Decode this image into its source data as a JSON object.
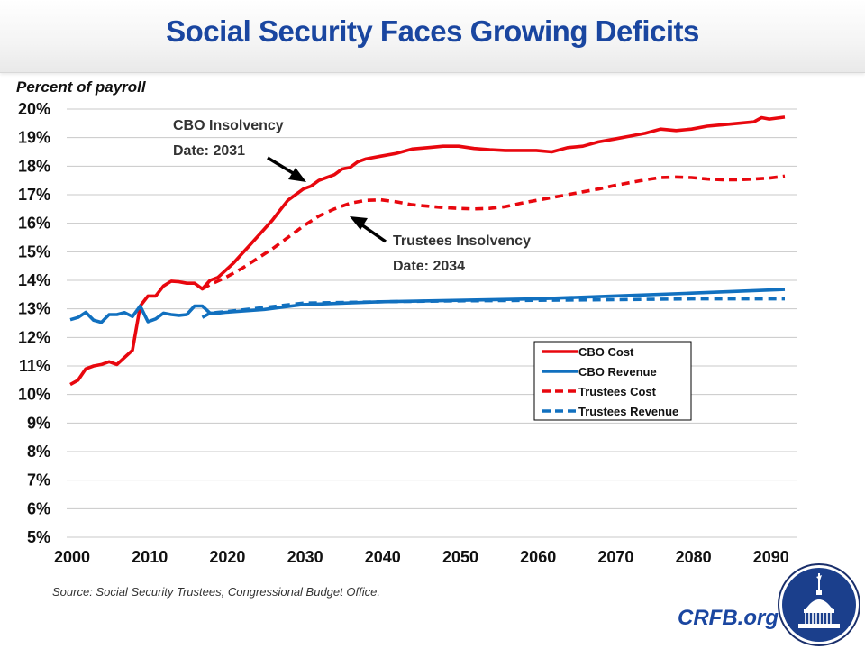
{
  "header": {
    "title": "Social Security Faces Growing Deficits"
  },
  "footer": {
    "source": "Source: Social Security Trustees, Congressional Budget Office.",
    "brand": "CRFB.org",
    "logo_icon": "capitol-dome-seal-icon"
  },
  "colors": {
    "title": "#1a46a0",
    "cost": "#e8070e",
    "revenue": "#1170bf",
    "grid": "#c8c8c8"
  },
  "chart_data": {
    "type": "line",
    "title": "Social Security Faces Growing Deficits",
    "ylabel": "Percent of payroll",
    "xlabel": "",
    "xlim": [
      2000,
      2092
    ],
    "ylim": [
      5,
      20
    ],
    "x_ticks": [
      "2000",
      "2010",
      "2020",
      "2030",
      "2040",
      "2050",
      "2060",
      "2070",
      "2080",
      "2090"
    ],
    "y_ticks": [
      "5%",
      "6%",
      "7%",
      "8%",
      "9%",
      "10%",
      "11%",
      "12%",
      "13%",
      "14%",
      "15%",
      "16%",
      "17%",
      "18%",
      "19%",
      "20%"
    ],
    "grid": true,
    "legend": {
      "placement": "center-right",
      "entries": [
        "CBO Cost",
        "CBO Revenue",
        "Trustees Cost",
        "Trustees Revenue"
      ]
    },
    "annotations": [
      {
        "lines": [
          "CBO Insolvency",
          "Date: 2031"
        ],
        "points_to_year": 2031
      },
      {
        "lines": [
          "Trustees Insolvency",
          "Date: 2034"
        ],
        "points_to_year": 2034
      }
    ],
    "series": [
      {
        "name": "CBO Cost",
        "style": "solid",
        "color": "#e8070e",
        "x": [
          2000,
          2001,
          2002,
          2003,
          2004,
          2005,
          2006,
          2007,
          2008,
          2009,
          2010,
          2011,
          2012,
          2013,
          2014,
          2015,
          2016,
          2017,
          2018,
          2019,
          2020,
          2021,
          2022,
          2023,
          2024,
          2025,
          2026,
          2027,
          2028,
          2029,
          2030,
          2031,
          2032,
          2033,
          2034,
          2035,
          2036,
          2037,
          2038,
          2040,
          2042,
          2044,
          2046,
          2048,
          2050,
          2052,
          2054,
          2056,
          2058,
          2060,
          2062,
          2064,
          2066,
          2068,
          2070,
          2072,
          2074,
          2076,
          2078,
          2080,
          2082,
          2084,
          2086,
          2088,
          2089,
          2090,
          2092
        ],
        "y": [
          10.35,
          10.5,
          10.9,
          11.0,
          11.05,
          11.15,
          11.05,
          11.3,
          11.55,
          13.1,
          13.45,
          13.45,
          13.8,
          13.97,
          13.95,
          13.9,
          13.9,
          13.7,
          14.0,
          14.1,
          14.35,
          14.6,
          14.9,
          15.2,
          15.5,
          15.8,
          16.1,
          16.45,
          16.8,
          17.0,
          17.2,
          17.3,
          17.5,
          17.6,
          17.7,
          17.9,
          17.95,
          18.15,
          18.25,
          18.35,
          18.45,
          18.6,
          18.65,
          18.7,
          18.7,
          18.62,
          18.58,
          18.55,
          18.55,
          18.55,
          18.5,
          18.65,
          18.7,
          18.85,
          18.95,
          19.05,
          19.15,
          19.3,
          19.25,
          19.3,
          19.4,
          19.45,
          19.5,
          19.55,
          19.7,
          19.65,
          19.72
        ]
      },
      {
        "name": "CBO Revenue",
        "style": "solid",
        "color": "#1170bf",
        "x": [
          2000,
          2001,
          2002,
          2003,
          2004,
          2005,
          2006,
          2007,
          2008,
          2009,
          2010,
          2011,
          2012,
          2013,
          2014,
          2015,
          2016,
          2017,
          2018,
          2019,
          2020,
          2025,
          2030,
          2040,
          2050,
          2060,
          2070,
          2080,
          2092
        ],
        "y": [
          12.62,
          12.7,
          12.88,
          12.6,
          12.53,
          12.8,
          12.8,
          12.87,
          12.73,
          13.1,
          12.55,
          12.65,
          12.85,
          12.8,
          12.77,
          12.8,
          13.1,
          13.1,
          12.85,
          12.85,
          12.88,
          12.98,
          13.15,
          13.25,
          13.3,
          13.35,
          13.45,
          13.55,
          13.68
        ]
      },
      {
        "name": "Trustees Cost",
        "style": "dashed",
        "color": "#e8070e",
        "x": [
          2017,
          2018,
          2020,
          2022,
          2024,
          2026,
          2028,
          2030,
          2032,
          2034,
          2036,
          2038,
          2040,
          2042,
          2044,
          2046,
          2048,
          2050,
          2052,
          2054,
          2056,
          2058,
          2060,
          2062,
          2064,
          2066,
          2068,
          2070,
          2072,
          2074,
          2076,
          2078,
          2080,
          2082,
          2084,
          2086,
          2088,
          2090,
          2092
        ],
        "y": [
          13.7,
          13.85,
          14.1,
          14.4,
          14.75,
          15.1,
          15.5,
          15.9,
          16.25,
          16.5,
          16.7,
          16.8,
          16.82,
          16.75,
          16.65,
          16.6,
          16.55,
          16.52,
          16.5,
          16.52,
          16.58,
          16.7,
          16.8,
          16.9,
          17.0,
          17.1,
          17.2,
          17.32,
          17.42,
          17.52,
          17.6,
          17.62,
          17.6,
          17.55,
          17.52,
          17.52,
          17.55,
          17.58,
          17.65
        ]
      },
      {
        "name": "Trustees Revenue",
        "style": "dashed",
        "color": "#1170bf",
        "x": [
          2017,
          2018,
          2019,
          2020,
          2025,
          2030,
          2040,
          2050,
          2060,
          2070,
          2080,
          2092
        ],
        "y": [
          12.7,
          12.85,
          12.88,
          12.9,
          13.05,
          13.2,
          13.25,
          13.28,
          13.3,
          13.32,
          13.35,
          13.35
        ]
      }
    ]
  }
}
